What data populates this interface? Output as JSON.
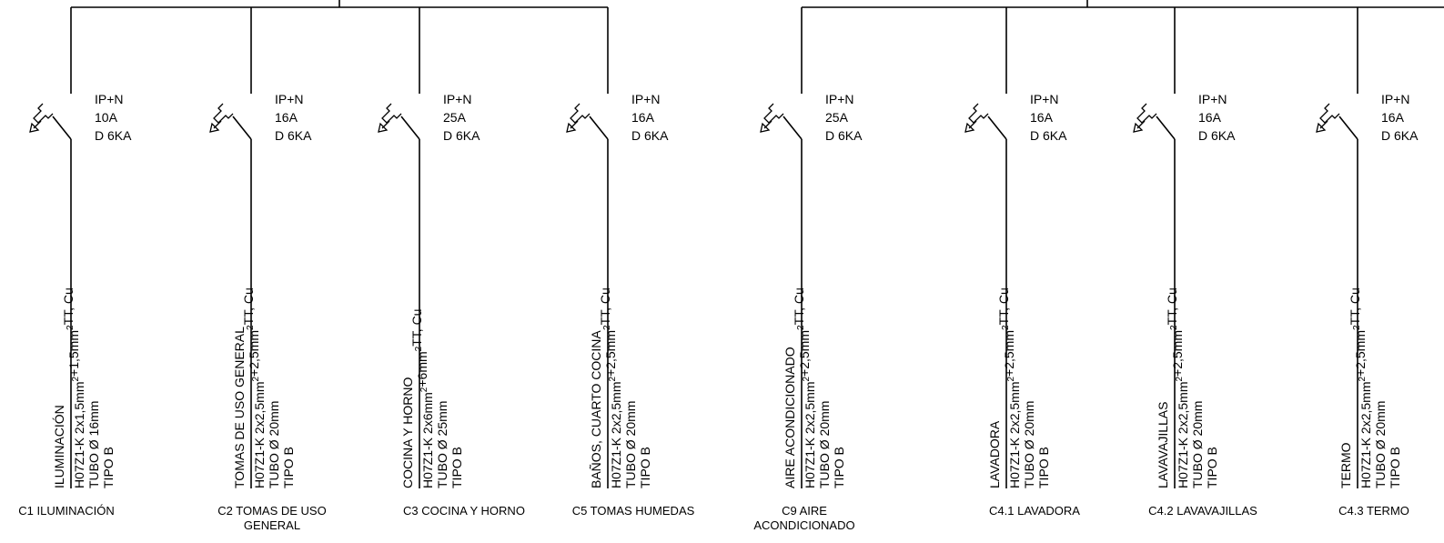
{
  "diagram": {
    "line_color": "#000000",
    "circuits": [
      {
        "id": "C1",
        "name": "ILUMINACIÓN",
        "breaker": {
          "poles": "IP+N",
          "current": "10A",
          "curve": "D 6KA"
        },
        "cable": {
          "spec": "H07Z1-K 2x1,5mm",
          "exp": "2",
          "spec2": "+1,5mm",
          "exp2": "2",
          "spec3": "TT, Cu",
          "tube": "TUBO Ø 16mm",
          "type": "TIPO B"
        },
        "caption": [
          "C1 ILUMINACIÓN"
        ]
      },
      {
        "id": "C2",
        "name": "TOMAS DE USO GENERAL",
        "breaker": {
          "poles": "IP+N",
          "current": "16A",
          "curve": "D 6KA"
        },
        "cable": {
          "spec": "H07Z1-K 2x2,5mm",
          "exp": "2",
          "spec2": "+2,5mm",
          "exp2": "2",
          "spec3": "TT, Cu",
          "tube": "TUBO Ø 20mm",
          "type": "TIPO B"
        },
        "caption": [
          "C2 TOMAS DE USO",
          "GENERAL"
        ]
      },
      {
        "id": "C3",
        "name": "COCINA Y HORNO",
        "breaker": {
          "poles": "IP+N",
          "current": "25A",
          "curve": "D 6KA"
        },
        "cable": {
          "spec": "H07Z1-K 2x6mm",
          "exp": "2",
          "spec2": "+6mm",
          "exp2": "2",
          "spec3": "TT, Cu",
          "tube": "TUBO Ø 25mm",
          "type": "TIPO B"
        },
        "caption": [
          "C3 COCINA Y HORNO"
        ]
      },
      {
        "id": "C5",
        "name": "BAÑOS, CUARTO COCINA",
        "breaker": {
          "poles": "IP+N",
          "current": "16A",
          "curve": "D 6KA"
        },
        "cable": {
          "spec": "H07Z1-K 2x2,5mm",
          "exp": "2",
          "spec2": "+2,5mm",
          "exp2": "2",
          "spec3": "TT, Cu",
          "tube": "TUBO Ø 20mm",
          "type": "TIPO B"
        },
        "caption": [
          "C5 TOMAS HUMEDAS"
        ]
      },
      {
        "id": "C9",
        "name": "AIRE ACONDICIONADO",
        "breaker": {
          "poles": "IP+N",
          "current": "25A",
          "curve": "D 6KA"
        },
        "cable": {
          "spec": "H07Z1-K 2x2,5mm",
          "exp": "2",
          "spec2": "+2,5mm",
          "exp2": "2",
          "spec3": "TT, Cu",
          "tube": "TUBO Ø 20mm",
          "type": "TIPO B"
        },
        "caption": [
          "C9 AIRE",
          "ACONDICIONADO"
        ]
      },
      {
        "id": "C4.1",
        "name": "LAVADORA",
        "breaker": {
          "poles": "IP+N",
          "current": "16A",
          "curve": "D 6KA"
        },
        "cable": {
          "spec": "H07Z1-K 2x2,5mm",
          "exp": "2",
          "spec2": "+2,5mm",
          "exp2": "2",
          "spec3": "TT, Cu",
          "tube": "TUBO Ø 20mm",
          "type": "TIPO B"
        },
        "caption": [
          "C4.1 LAVADORA"
        ]
      },
      {
        "id": "C4.2",
        "name": "LAVAVAJILLAS",
        "breaker": {
          "poles": "IP+N",
          "current": "16A",
          "curve": "D 6KA"
        },
        "cable": {
          "spec": "H07Z1-K 2x2,5mm",
          "exp": "2",
          "spec2": "+2,5mm",
          "exp2": "2",
          "spec3": "TT, Cu",
          "tube": "TUBO Ø 20mm",
          "type": "TIPO B"
        },
        "caption": [
          "C4.2 LAVAVAJILLAS"
        ]
      },
      {
        "id": "C4.3",
        "name": "TERMO",
        "breaker": {
          "poles": "IP+N",
          "current": "16A",
          "curve": "D 6KA"
        },
        "cable": {
          "spec": "H07Z1-K 2x2,5mm",
          "exp": "2",
          "spec2": "+2,5mm",
          "exp2": "2",
          "spec3": "TT, Cu",
          "tube": "TUBO Ø 20mm",
          "type": "TIPO B"
        },
        "caption": [
          "C4.3 TERMO"
        ]
      }
    ]
  }
}
